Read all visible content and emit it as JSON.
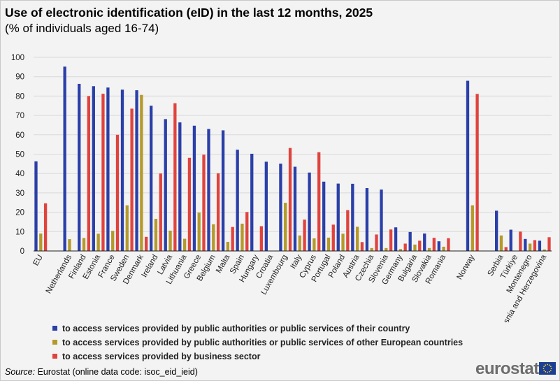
{
  "title": "Use of electronic identification (eID) in the last 12 months, 2025",
  "subtitle": "(% of individuals aged 16-74)",
  "source_label": "Source:",
  "source_text": "Eurostat (online data code: isoc_eid_ieid)",
  "logo_text": "eurostat",
  "colors": {
    "series1": "#2a3fa8",
    "series2": "#b49a2b",
    "series3": "#e0433e"
  },
  "chart_data": {
    "type": "bar",
    "title": "Use of electronic identification (eID) in the last 12 months, 2025",
    "subtitle": "(% of individuals aged 16-74)",
    "xlabel": "",
    "ylabel": "",
    "ylim": [
      0,
      100
    ],
    "yticks": [
      "0",
      "10",
      "20",
      "30",
      "40",
      "50",
      "60",
      "70",
      "80",
      "90",
      "100"
    ],
    "grid": true,
    "legend_position": "bottom",
    "categories": [
      "EU",
      "",
      "Netherlands",
      "Finland",
      "Estonia",
      "France",
      "Sweden",
      "Denmark",
      "Ireland",
      "Latvia",
      "Lithuania",
      "Greece",
      "Belgium",
      "Malta",
      "Spain",
      "Hungary",
      "Croatia",
      "Luxembourg",
      "Italy",
      "Cyprus",
      "Portugal",
      "Poland",
      "Austria",
      "Czechia",
      "Slovenia",
      "Germany",
      "Bulgaria",
      "Slovakia",
      "Romania",
      "",
      "Norway",
      "",
      "Serbia",
      "Türkiye",
      "Montenegro",
      "Bosnia and Herzegovina"
    ],
    "series": [
      {
        "name": "to access services provided by public authorities or public services of their country",
        "values": [
          46.3,
          null,
          95.2,
          86.3,
          85.1,
          84.4,
          83.3,
          83.0,
          75.0,
          68.1,
          66.4,
          64.7,
          63.0,
          62.3,
          52.3,
          50.2,
          46.1,
          45.1,
          43.5,
          40.5,
          35.8,
          34.8,
          34.7,
          32.5,
          31.7,
          12.2,
          9.8,
          9.0,
          5.0,
          null,
          87.9,
          null,
          20.8,
          11.0,
          6.2,
          5.3
        ]
      },
      {
        "name": "to access services provided by public authorities or public services of other European countries",
        "values": [
          9.0,
          null,
          6.1,
          6.7,
          8.9,
          10.4,
          23.6,
          80.6,
          16.6,
          10.5,
          6.3,
          19.8,
          13.8,
          4.7,
          14.1,
          null,
          null,
          24.9,
          8.0,
          6.5,
          6.9,
          8.9,
          12.5,
          1.5,
          1.5,
          1.0,
          3.3,
          1.5,
          2.2,
          null,
          23.6,
          null,
          8.0,
          null,
          3.8,
          0.8
        ]
      },
      {
        "name": "to access services provided by business sector",
        "values": [
          24.6,
          null,
          null,
          80.0,
          81.2,
          60.0,
          73.5,
          7.3,
          40.0,
          76.3,
          48.1,
          49.7,
          40.1,
          12.4,
          20.1,
          12.8,
          null,
          53.2,
          16.2,
          51.0,
          13.6,
          21.1,
          4.6,
          8.5,
          11.1,
          3.8,
          5.3,
          6.8,
          6.6,
          null,
          81.1,
          null,
          2.0,
          10.0,
          5.6,
          7.1
        ]
      }
    ]
  },
  "legend": [
    "to access services provided by public authorities or public services of their country",
    "to access services provided by public authorities or public services of other European countries",
    "to access services provided by business sector"
  ]
}
